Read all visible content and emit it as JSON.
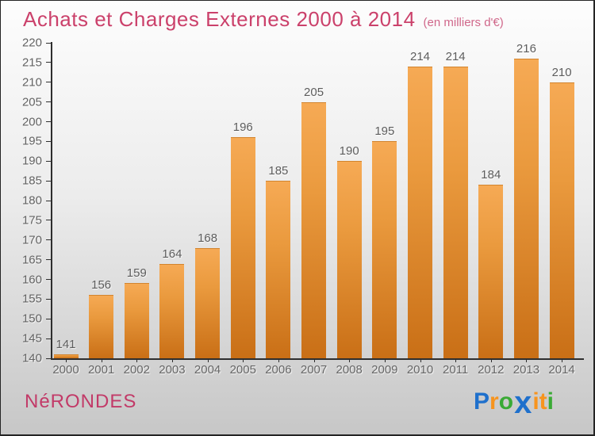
{
  "header": {
    "title": "Achats et Charges Externes 2000 à 2014",
    "subtitle": "(en milliers d'€)"
  },
  "footer": {
    "location": "NéRONDES",
    "brand_name": "Proxiti",
    "brand_letters": [
      {
        "ch": "P",
        "color": "#1f70cc",
        "big": false
      },
      {
        "ch": "r",
        "color": "#f7941e",
        "big": false
      },
      {
        "ch": "o",
        "color": "#3aaa35",
        "big": false
      },
      {
        "ch": "x",
        "color": "#1f70cc",
        "big": true
      },
      {
        "ch": "i",
        "color": "#f7941e",
        "big": false
      },
      {
        "ch": "t",
        "color": "#f7941e",
        "big": false
      },
      {
        "ch": "i",
        "color": "#3aaa35",
        "big": false
      }
    ]
  },
  "colors": {
    "title_pink": "#cb416b",
    "bar_top": "#f6aa55",
    "bar_bottom": "#c96f16",
    "axis": "#2e2e2e",
    "label_gray": "#636363"
  },
  "chart_data": {
    "type": "bar",
    "title": "Achats et Charges Externes 2000 à 2014",
    "subtitle": "(en milliers d'€)",
    "categories": [
      "2000",
      "2001",
      "2002",
      "2003",
      "2004",
      "2005",
      "2006",
      "2007",
      "2008",
      "2009",
      "2010",
      "2011",
      "2012",
      "2013",
      "2014"
    ],
    "values": [
      141,
      156,
      159,
      164,
      168,
      196,
      185,
      205,
      190,
      195,
      214,
      214,
      184,
      216,
      210
    ],
    "ylim": [
      140,
      220
    ],
    "ytick_step": 5,
    "yticks": [
      140,
      145,
      150,
      155,
      160,
      165,
      170,
      175,
      180,
      185,
      190,
      195,
      200,
      205,
      210,
      215,
      220
    ],
    "grid": false,
    "legend": false,
    "bar_gradient": [
      "#f6aa55",
      "#c96f16"
    ]
  }
}
